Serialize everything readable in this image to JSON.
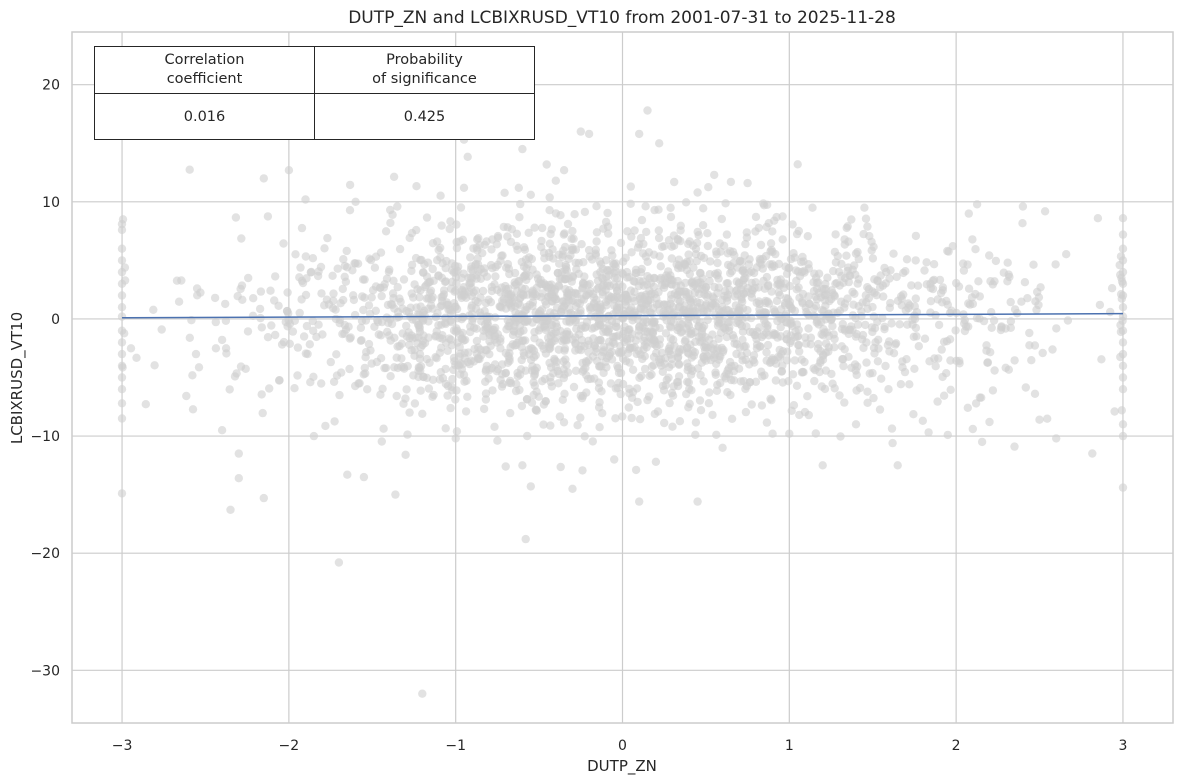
{
  "chart_data": {
    "type": "scatter",
    "title": "DUTP_ZN and LCBIXRUSD_VT10 from 2001-07-31 to 2025-11-28",
    "xlabel": "DUTP_ZN",
    "ylabel": "LCBIXRUSD_VT10",
    "xlim": [
      -3.3,
      3.3
    ],
    "ylim": [
      -34.5,
      24.5
    ],
    "xticks": [
      -3,
      -2,
      -1,
      0,
      1,
      2,
      3
    ],
    "xtick_labels": [
      "−3",
      "−2",
      "−1",
      "0",
      "1",
      "2",
      "3"
    ],
    "yticks": [
      -30,
      -20,
      -10,
      0,
      10,
      20
    ],
    "ytick_labels": [
      "−30",
      "−20",
      "−10",
      "0",
      "10",
      "20"
    ],
    "grid": true,
    "point_color": "#cfcfcf",
    "fit_color": "#4c72b0",
    "regression_line": {
      "x": [
        -3,
        3
      ],
      "y": [
        0.1,
        0.45
      ]
    },
    "points": [
      [
        -1.2,
        -32
      ],
      [
        -1.7,
        -20.8
      ],
      [
        -0.58,
        -18.8
      ],
      [
        -2.35,
        -16.3
      ],
      [
        -2.15,
        -15.3
      ],
      [
        -3,
        -14.9
      ],
      [
        3,
        -14.4
      ],
      [
        -0.3,
        -14.5
      ],
      [
        -0.55,
        -14.3
      ],
      [
        0.1,
        -15.6
      ],
      [
        0.45,
        -15.6
      ],
      [
        -2.3,
        -13.6
      ],
      [
        -1.65,
        -13.3
      ],
      [
        -1.55,
        -13.5
      ],
      [
        -0.6,
        -12.5
      ],
      [
        0.2,
        -12.2
      ],
      [
        1.2,
        -12.5
      ],
      [
        1.65,
        -12.5
      ],
      [
        -2.3,
        -11.5
      ],
      [
        -1.3,
        -11.6
      ],
      [
        -0.05,
        -12
      ],
      [
        0.6,
        -11
      ],
      [
        -0.7,
        -12.6
      ],
      [
        2.35,
        -10.9
      ],
      [
        2.6,
        -10.2
      ],
      [
        -1.85,
        -10
      ],
      [
        -1.0,
        -10.2
      ],
      [
        0.9,
        -9.8
      ],
      [
        1.0,
        -9.8
      ],
      [
        1.95,
        -9.9
      ],
      [
        2.1,
        -9.4
      ],
      [
        2.2,
        -8.8
      ],
      [
        2.5,
        -8.6
      ],
      [
        -2.4,
        -9.5
      ],
      [
        -0.75,
        -10.4
      ],
      [
        -1.2,
        -8.1
      ],
      [
        0.3,
        -9.2
      ],
      [
        1.4,
        -9.0
      ],
      [
        1.8,
        -8.7
      ],
      [
        2.95,
        -7.9
      ],
      [
        -0.25,
        16.0
      ],
      [
        0.1,
        15.8
      ],
      [
        0.15,
        17.8
      ],
      [
        0.22,
        15.0
      ],
      [
        -0.2,
        15.8
      ],
      [
        -0.95,
        15.3
      ],
      [
        -0.6,
        14.5
      ],
      [
        -0.35,
        12.7
      ],
      [
        0.55,
        12.3
      ],
      [
        -2.15,
        12.0
      ],
      [
        -2.0,
        12.7
      ],
      [
        1.05,
        13.2
      ],
      [
        -0.4,
        11.8
      ],
      [
        0.05,
        11.3
      ],
      [
        0.65,
        11.7
      ],
      [
        -0.95,
        11.2
      ],
      [
        1.45,
        9.5
      ],
      [
        2.4,
        9.6
      ],
      [
        2.85,
        8.6
      ],
      [
        -1.6,
        10.0
      ],
      [
        -1.9,
        10.2
      ],
      [
        -0.55,
        10.6
      ],
      [
        0.45,
        10.8
      ],
      [
        0.75,
        11.6
      ],
      [
        -1.35,
        9.6
      ],
      [
        -3,
        8.1
      ],
      [
        3,
        8.6
      ],
      [
        -3,
        6.0
      ],
      [
        3,
        6.0
      ],
      [
        -3,
        5.0
      ],
      [
        3,
        5.0
      ],
      [
        -3,
        4.0
      ],
      [
        3,
        4.0
      ],
      [
        -3,
        3.0
      ],
      [
        3,
        3.0
      ],
      [
        -3,
        2.0
      ],
      [
        3,
        2.0
      ],
      [
        -3,
        1.0
      ],
      [
        3,
        1.0
      ],
      [
        -3,
        0.2
      ],
      [
        3,
        0.2
      ],
      [
        -3,
        -1.0
      ],
      [
        3,
        -1.0
      ],
      [
        -3,
        -2.0
      ],
      [
        3,
        -2.0
      ],
      [
        -3,
        -3.0
      ],
      [
        3,
        -3.0
      ],
      [
        -3,
        -4.0
      ],
      [
        3,
        -4.0
      ],
      [
        -3,
        -5.0
      ],
      [
        3,
        -5.0
      ],
      [
        -3,
        -6.0
      ],
      [
        3,
        -6.0
      ],
      [
        -3,
        -7.2
      ],
      [
        3,
        -10.0
      ],
      [
        -3,
        -8.5
      ],
      [
        3,
        -9.0
      ],
      [
        -3,
        7.6
      ],
      [
        3,
        7.2
      ]
    ],
    "random_cloud": {
      "n": 2600,
      "seed": 7,
      "x_sd": 1.1,
      "y_sd": 3.9,
      "x_range": [
        -3,
        3
      ],
      "y_range": [
        -15,
        15
      ]
    },
    "table": {
      "headers": [
        [
          "Correlation",
          "coefficient"
        ],
        [
          "Probability",
          "of significance"
        ]
      ],
      "values": [
        "0.016",
        "0.425"
      ]
    }
  }
}
